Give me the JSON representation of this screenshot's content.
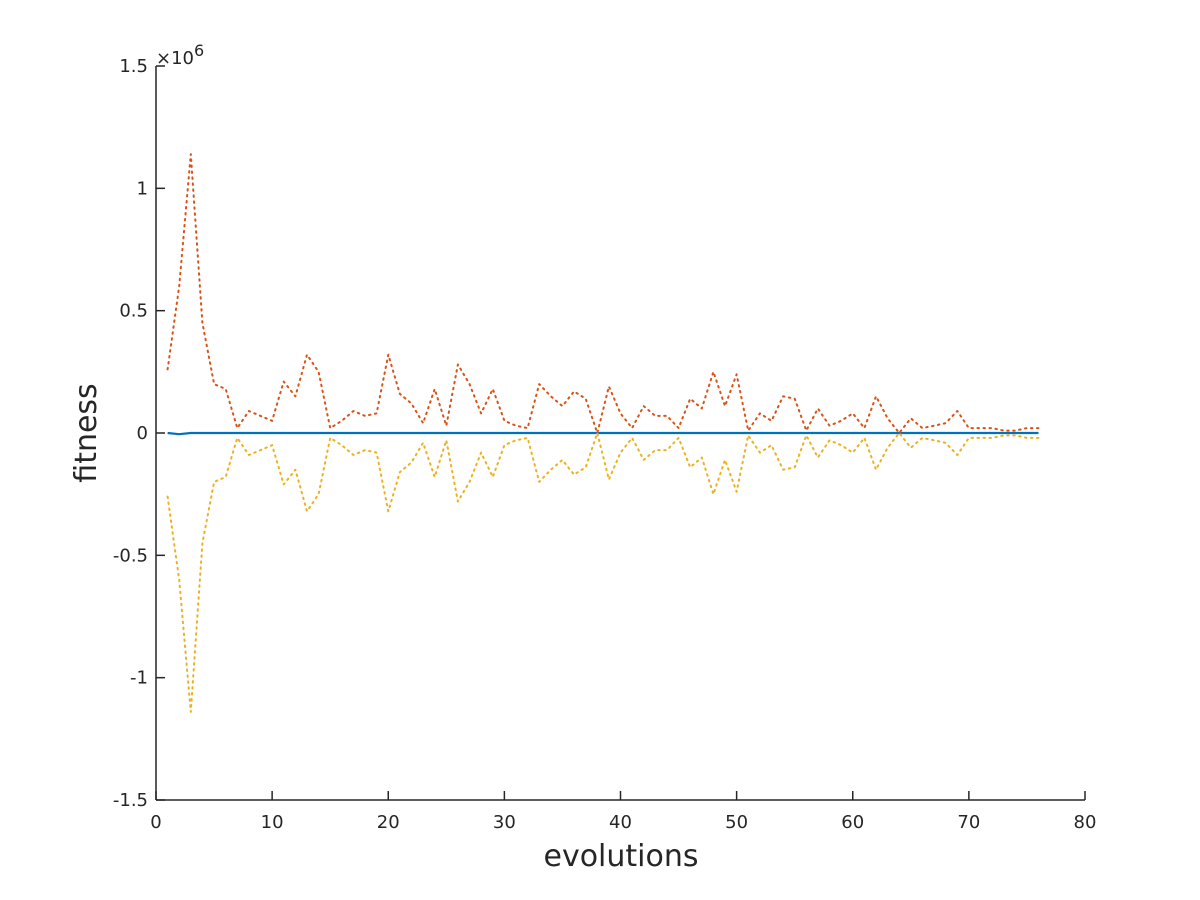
{
  "chart_data": {
    "type": "line",
    "xlabel": "evolutions",
    "ylabel": "fitness",
    "y_exponent_label": "×10",
    "y_exponent_power": "6",
    "xlim": [
      0,
      80
    ],
    "ylim": [
      -1.5,
      1.5
    ],
    "y_scale_factor": 1000000,
    "xticks": [
      0,
      10,
      20,
      30,
      40,
      50,
      60,
      70,
      80
    ],
    "yticks": [
      -1.5,
      -1,
      -0.5,
      0,
      0.5,
      1,
      1.5
    ],
    "xtick_labels": [
      "0",
      "10",
      "20",
      "30",
      "40",
      "50",
      "60",
      "70",
      "80"
    ],
    "ytick_labels": [
      "-1.5",
      "-1",
      "-0.5",
      "0",
      "0.5",
      "1",
      "1.5"
    ],
    "grid": false,
    "x": [
      1,
      2,
      3,
      4,
      5,
      6,
      7,
      8,
      9,
      10,
      11,
      12,
      13,
      14,
      15,
      16,
      17,
      18,
      19,
      20,
      21,
      22,
      23,
      24,
      25,
      26,
      27,
      28,
      29,
      30,
      31,
      32,
      33,
      34,
      35,
      36,
      37,
      38,
      39,
      40,
      41,
      42,
      43,
      44,
      45,
      46,
      47,
      48,
      49,
      50,
      51,
      52,
      53,
      54,
      55,
      56,
      57,
      58,
      59,
      60,
      61,
      62,
      63,
      64,
      65,
      66,
      67,
      68,
      69,
      70,
      71,
      72,
      73,
      74,
      75,
      76
    ],
    "series": [
      {
        "color": "#0072BD",
        "style": "solid",
        "values": [
          0,
          -0.005,
          0,
          0,
          0,
          0,
          0,
          0,
          0,
          0,
          0,
          0,
          0,
          0,
          0,
          0,
          0,
          0,
          0,
          0,
          0,
          0,
          0,
          0,
          0,
          0,
          0,
          0,
          0,
          0,
          0,
          0,
          0,
          0,
          0,
          0,
          0,
          0,
          0,
          0,
          0,
          0,
          0,
          0,
          0,
          0,
          0,
          0,
          0,
          0,
          0,
          0,
          0,
          0,
          0,
          0,
          0,
          0,
          0,
          0,
          0,
          0,
          0,
          0,
          0,
          0,
          0,
          0,
          0,
          0,
          0,
          0,
          0,
          0,
          0,
          0
        ]
      },
      {
        "color": "#D95319",
        "style": "dotted",
        "values": [
          0.26,
          0.6,
          1.14,
          0.45,
          0.2,
          0.18,
          0.02,
          0.09,
          0.07,
          0.05,
          0.21,
          0.15,
          0.32,
          0.25,
          0.02,
          0.05,
          0.09,
          0.07,
          0.08,
          0.32,
          0.16,
          0.12,
          0.04,
          0.18,
          0.03,
          0.28,
          0.2,
          0.08,
          0.18,
          0.05,
          0.03,
          0.02,
          0.2,
          0.15,
          0.11,
          0.17,
          0.14,
          0.0,
          0.19,
          0.08,
          0.02,
          0.11,
          0.07,
          0.07,
          0.02,
          0.14,
          0.1,
          0.25,
          0.11,
          0.24,
          0.01,
          0.08,
          0.05,
          0.15,
          0.14,
          0.01,
          0.1,
          0.03,
          0.05,
          0.08,
          0.02,
          0.15,
          0.06,
          0.0,
          0.06,
          0.02,
          0.03,
          0.04,
          0.09,
          0.02,
          0.02,
          0.02,
          0.01,
          0.01,
          0.02,
          0.02
        ]
      },
      {
        "color": "#EDB120",
        "style": "dotted",
        "values": [
          -0.26,
          -0.6,
          -1.14,
          -0.45,
          -0.2,
          -0.18,
          -0.02,
          -0.09,
          -0.07,
          -0.05,
          -0.21,
          -0.15,
          -0.32,
          -0.25,
          -0.02,
          -0.05,
          -0.09,
          -0.07,
          -0.08,
          -0.32,
          -0.16,
          -0.12,
          -0.04,
          -0.18,
          -0.03,
          -0.28,
          -0.2,
          -0.08,
          -0.18,
          -0.05,
          -0.03,
          -0.02,
          -0.2,
          -0.15,
          -0.11,
          -0.17,
          -0.14,
          0.0,
          -0.19,
          -0.08,
          -0.02,
          -0.11,
          -0.07,
          -0.07,
          -0.02,
          -0.14,
          -0.1,
          -0.25,
          -0.11,
          -0.24,
          -0.01,
          -0.08,
          -0.05,
          -0.15,
          -0.14,
          -0.01,
          -0.1,
          -0.03,
          -0.05,
          -0.08,
          -0.02,
          -0.15,
          -0.06,
          0.0,
          -0.06,
          -0.02,
          -0.03,
          -0.04,
          -0.09,
          -0.02,
          -0.02,
          -0.02,
          -0.01,
          -0.01,
          -0.02,
          -0.02
        ]
      }
    ]
  }
}
